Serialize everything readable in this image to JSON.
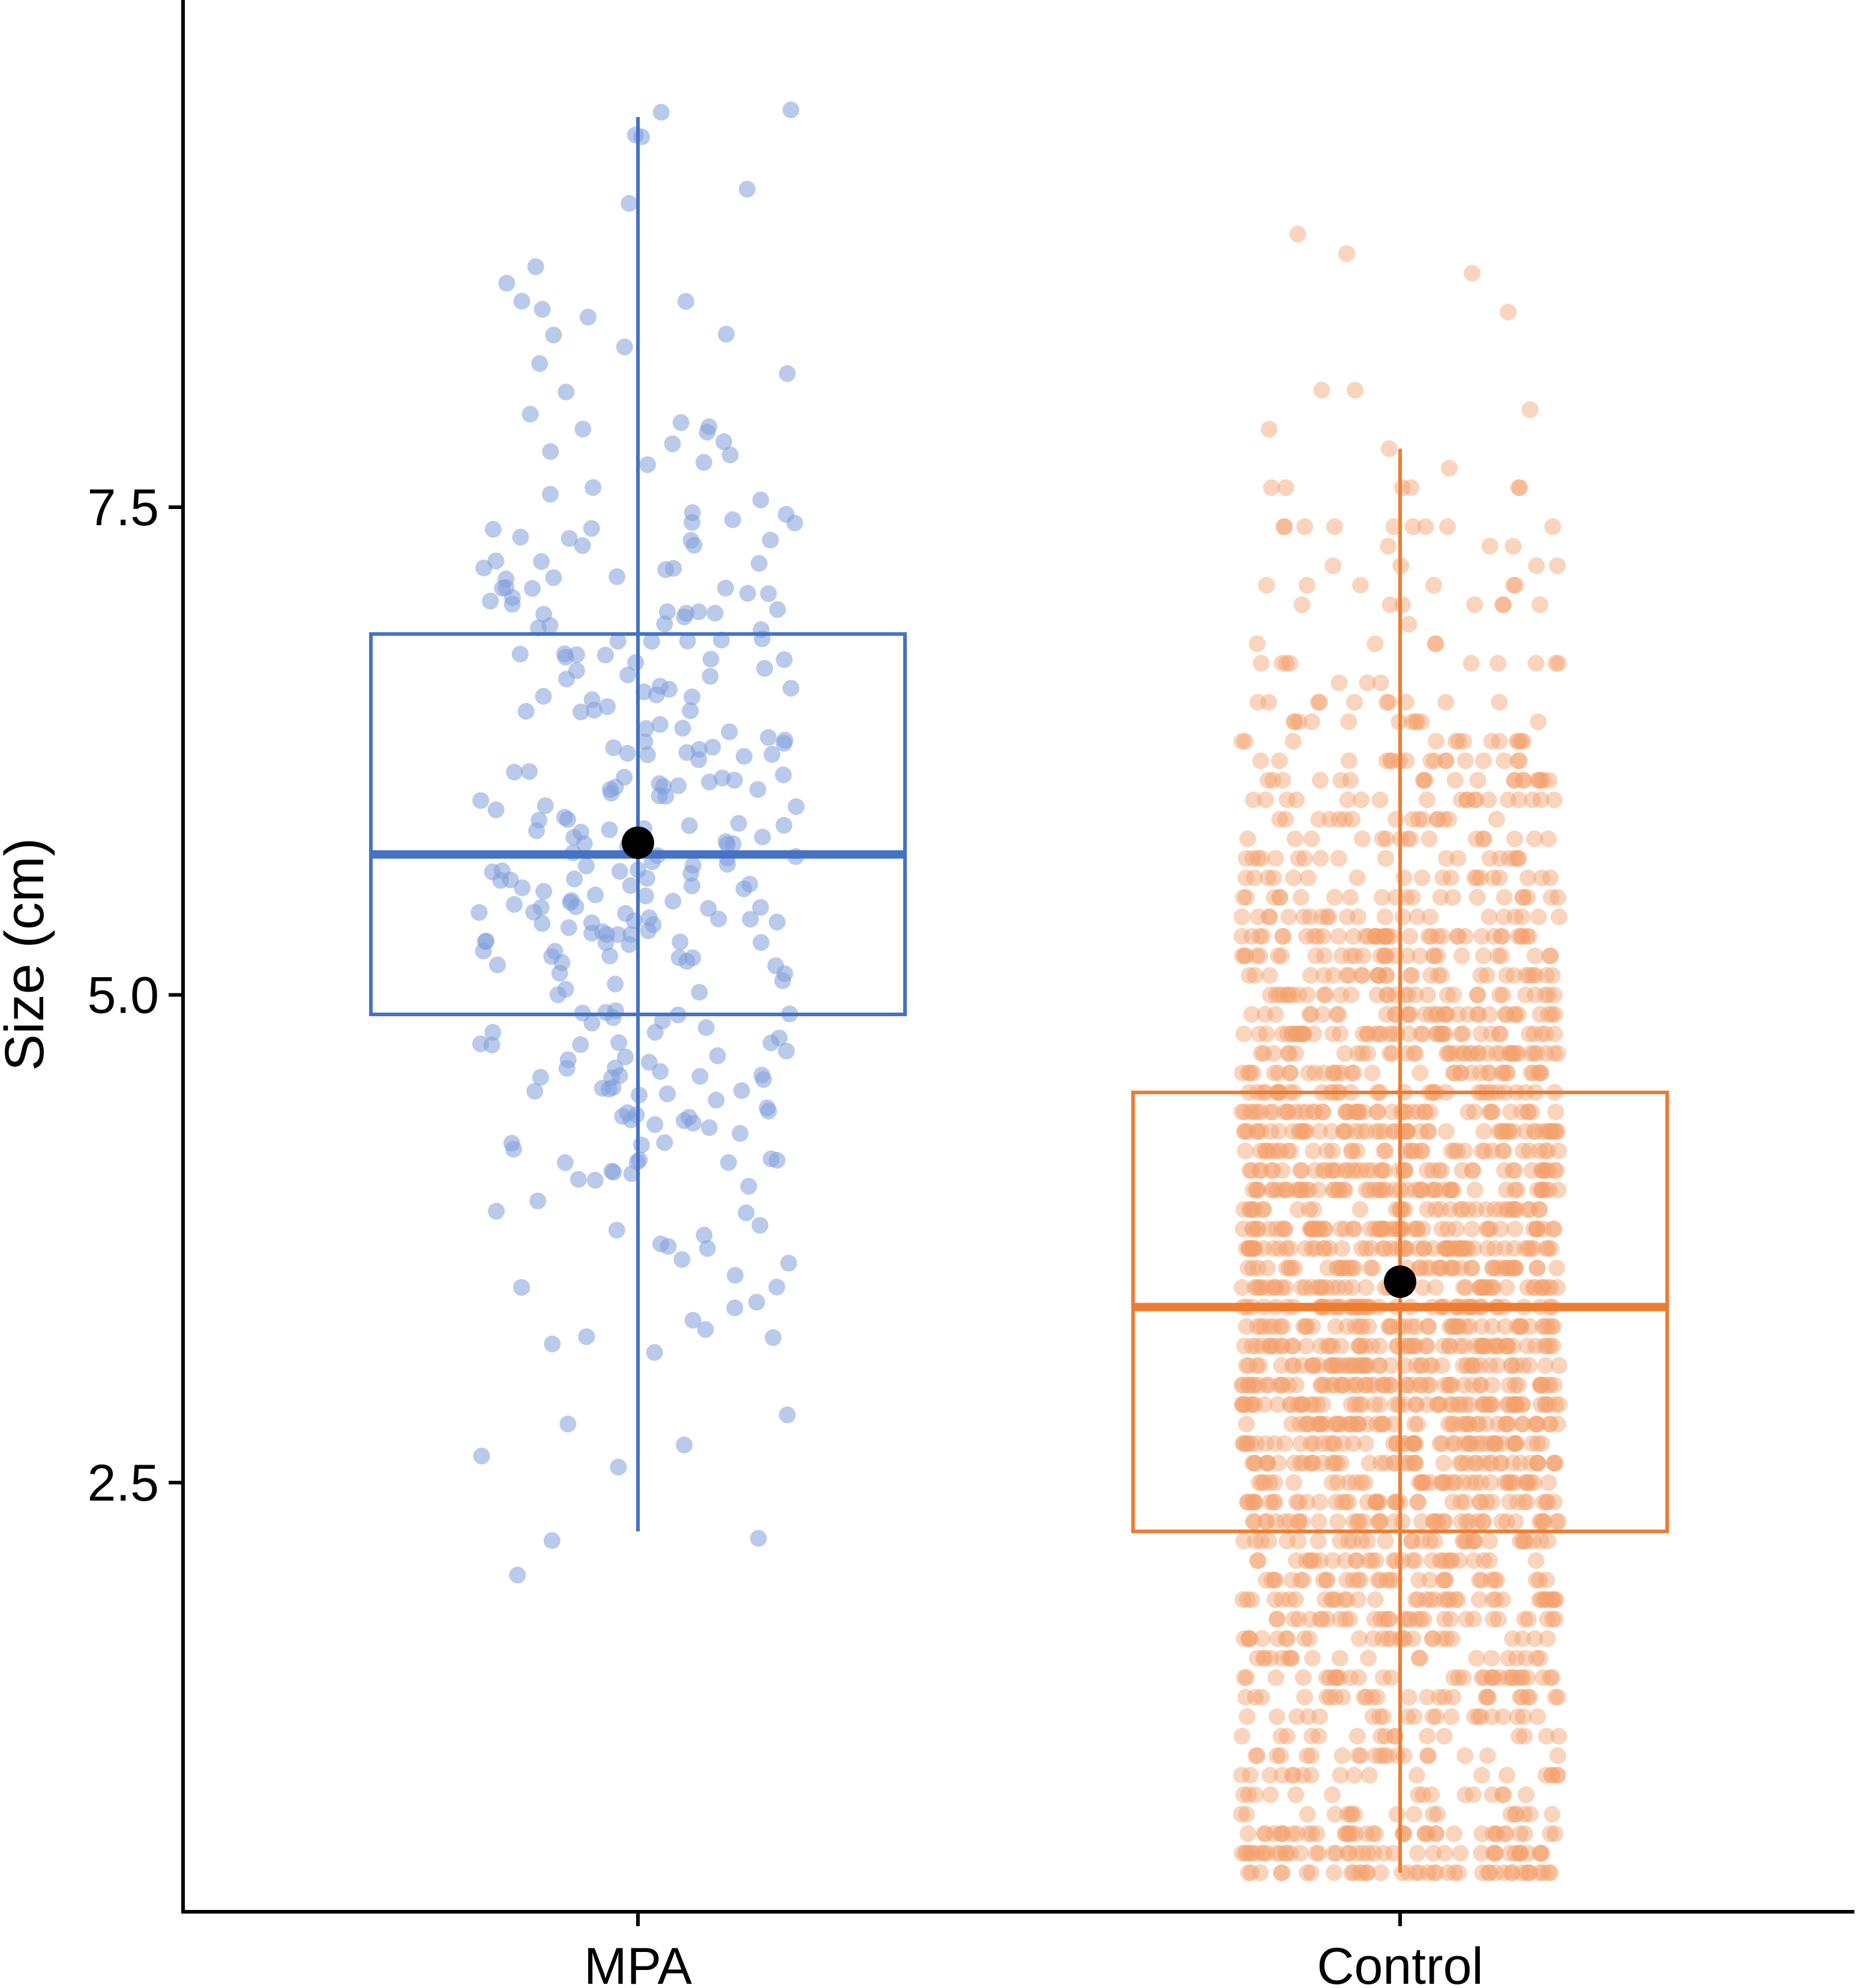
{
  "chart_data": {
    "type": "boxplot-jitter",
    "title": "",
    "xlabel": "",
    "ylabel": "Size (cm)",
    "ylim": [
      0.3,
      10.1
    ],
    "yticks": [
      2.5,
      5.0,
      7.5
    ],
    "ytick_labels": [
      "2.5",
      "5.0",
      "7.5"
    ],
    "grid": false,
    "legend": "none",
    "categories": [
      "MPA",
      "Control"
    ],
    "groups": [
      {
        "name": "MPA",
        "color": "#4472C4",
        "point_color": "#7F9FDB",
        "q1": 4.9,
        "median": 5.72,
        "q3": 6.85,
        "whisker_low": 2.25,
        "whisker_high": 9.5,
        "mean": 5.78,
        "n_points_approx": 330,
        "y_range": [
          0.9,
          9.55
        ]
      },
      {
        "name": "Control",
        "color": "#ED7D31",
        "point_color": "#F4A06A",
        "q1": 2.25,
        "median": 3.4,
        "q3": 4.5,
        "whisker_low": 0.5,
        "whisker_high": 7.8,
        "mean": 3.53,
        "n_points_approx": 2200,
        "y_range": [
          0.45,
          9.45
        ]
      }
    ]
  }
}
